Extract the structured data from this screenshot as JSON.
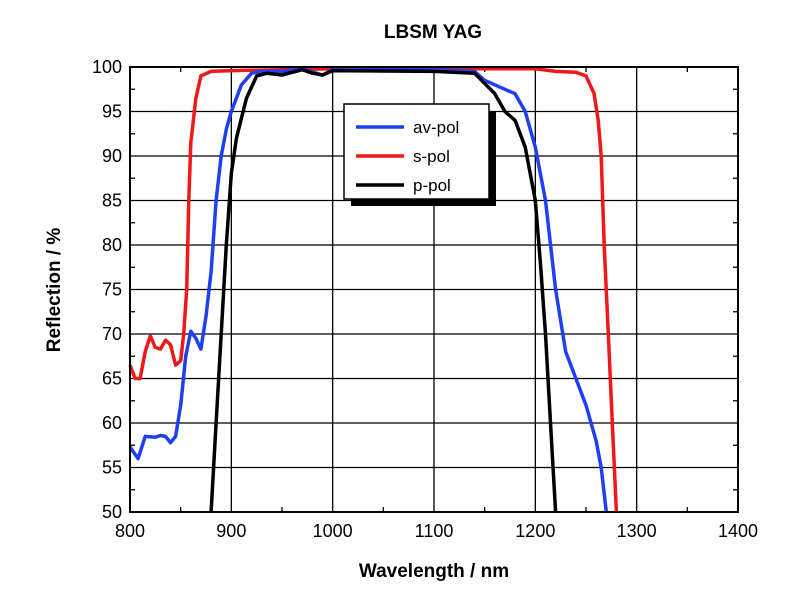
{
  "chart_data": {
    "type": "line",
    "title": "LBSM YAG",
    "xlabel": "Wavelength / nm",
    "ylabel": "Reflection / %",
    "xlim": [
      800,
      1400
    ],
    "ylim": [
      50,
      100
    ],
    "xticks": [
      "800",
      "900",
      "1000",
      "1100",
      "1200",
      "1300",
      "1400"
    ],
    "yticks": [
      "50",
      "55",
      "60",
      "65",
      "70",
      "75",
      "80",
      "85",
      "90",
      "95",
      "100"
    ],
    "grid": true,
    "legend_position": "top-center",
    "series": [
      {
        "name": "av-pol",
        "color": "#1f3ff5",
        "x": [
          800,
          808,
          815,
          825,
          830,
          835,
          840,
          845,
          850,
          855,
          860,
          865,
          870,
          875,
          880,
          885,
          890,
          895,
          900,
          910,
          920,
          930,
          950,
          970,
          990,
          1000,
          1100,
          1140,
          1150,
          1170,
          1180,
          1190,
          1200,
          1210,
          1220,
          1230,
          1240,
          1250,
          1260,
          1265,
          1270
        ],
        "y": [
          57.3,
          56,
          58.5,
          58.4,
          58.6,
          58.5,
          57.8,
          58.5,
          62,
          67.5,
          70.3,
          69.5,
          68.3,
          72,
          77,
          85,
          90,
          93,
          95,
          98,
          99.3,
          99.5,
          99.5,
          99.8,
          99.1,
          99.7,
          99.7,
          99.5,
          98.5,
          97.5,
          97,
          95,
          91,
          85,
          75,
          68,
          65,
          62,
          58,
          55,
          50
        ]
      },
      {
        "name": "s-pol",
        "color": "#f01818",
        "x": [
          800,
          805,
          810,
          815,
          820,
          825,
          830,
          835,
          840,
          845,
          850,
          853,
          856,
          858,
          860,
          865,
          870,
          880,
          900,
          950,
          1000,
          1100,
          1200,
          1220,
          1240,
          1250,
          1258,
          1262,
          1265,
          1268,
          1272,
          1276,
          1280
        ],
        "y": [
          66.5,
          65,
          65,
          68,
          69.8,
          68.5,
          68.3,
          69.3,
          68.8,
          66.5,
          67,
          70,
          75,
          85,
          91.5,
          96.5,
          99,
          99.5,
          99.6,
          99.7,
          99.8,
          99.8,
          99.8,
          99.5,
          99.4,
          99,
          97,
          94,
          90,
          80,
          70,
          60,
          50
        ]
      },
      {
        "name": "p-pol",
        "color": "#000000",
        "x": [
          880,
          885,
          890,
          895,
          900,
          905,
          915,
          925,
          935,
          950,
          970,
          980,
          990,
          1000,
          1100,
          1140,
          1160,
          1170,
          1180,
          1190,
          1200,
          1205,
          1210,
          1215,
          1220
        ],
        "y": [
          50,
          60,
          70,
          80,
          88,
          92,
          96.5,
          99,
          99.3,
          99.1,
          99.7,
          99.3,
          99.1,
          99.6,
          99.5,
          99.3,
          97,
          95,
          94,
          91,
          85,
          78,
          70,
          60,
          50
        ]
      }
    ]
  }
}
